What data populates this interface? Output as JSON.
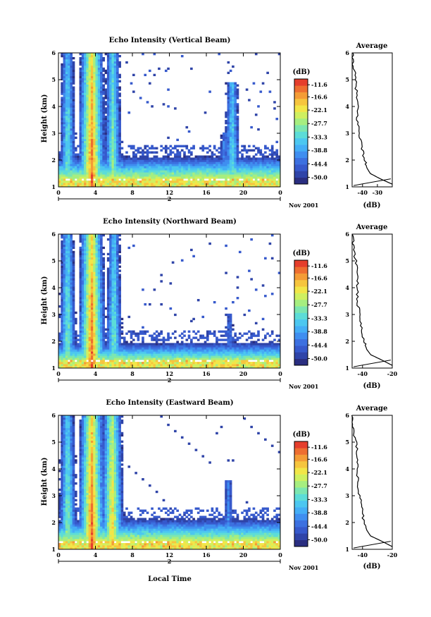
{
  "figure": {
    "xlabel": "Local Time",
    "date_label": "Nov 2001",
    "day_label": "2"
  },
  "colorbar": {
    "title": "(dB)",
    "ticks": [
      "-11.6",
      "-16.6",
      "-22.1",
      "-27.7",
      "-33.3",
      "-38.8",
      "-44.4",
      "-50.0"
    ],
    "colors": [
      "#2a2e80",
      "#2f44a8",
      "#3659cc",
      "#3c70e0",
      "#3f8ef0",
      "#44aef6",
      "#4cc7f0",
      "#5cdcd8",
      "#7ce6b0",
      "#a6ee80",
      "#cff060",
      "#f2e648",
      "#f6c53e",
      "#f49c36",
      "#ee6e30",
      "#e53e2c"
    ],
    "range": [
      -52.8,
      -9.2
    ]
  },
  "panels": [
    {
      "title": "Echo Intensity (Vertical Beam)",
      "ylabel": "Height (km)",
      "avg_title": "Average",
      "avg_xlabel": "(dB)",
      "avg_xticks": [
        "-40",
        "-30"
      ],
      "yticks": [
        "1",
        "2",
        "3",
        "4",
        "5",
        "6"
      ],
      "xticks": [
        "0",
        "4",
        "8",
        "12",
        "16",
        "20",
        "0"
      ]
    },
    {
      "title": "Echo Intensity (Northward Beam)",
      "ylabel": "Height (km)",
      "avg_title": "Average",
      "avg_xlabel": "(dB)",
      "avg_xticks": [
        "-40",
        "-20"
      ],
      "yticks": [
        "1",
        "2",
        "3",
        "4",
        "5",
        "6"
      ],
      "xticks": [
        "0",
        "4",
        "8",
        "12",
        "16",
        "20",
        "0"
      ]
    },
    {
      "title": "Echo Intensity (Eastward Beam)",
      "ylabel": "Height (km)",
      "avg_title": "Average",
      "avg_xlabel": "(dB)",
      "avg_xticks": [
        "-40",
        "-20"
      ],
      "yticks": [
        "1",
        "2",
        "3",
        "4",
        "5",
        "6"
      ],
      "xticks": [
        "0",
        "4",
        "8",
        "12",
        "16",
        "20",
        "0"
      ]
    }
  ],
  "chart_data": [
    {
      "type": "heatmap",
      "title": "Echo Intensity (Vertical Beam)",
      "xlabel": "",
      "ylabel": "Height (km)",
      "xlim": [
        0,
        24
      ],
      "ylim": [
        1,
        6
      ],
      "zlim": [
        -50.0,
        -11.6
      ],
      "colorbar_label": "(dB)",
      "features": [
        {
          "kind": "plume",
          "center_hour": 1.0,
          "from_km": 1.0,
          "to_km": 6.0,
          "peak_db": -28
        },
        {
          "kind": "plume",
          "center_hour": 3.6,
          "from_km": 1.0,
          "to_km": 6.0,
          "peak_db": -12
        },
        {
          "kind": "plume",
          "center_hour": 5.9,
          "from_km": 1.0,
          "to_km": 6.0,
          "peak_db": -26
        },
        {
          "kind": "layer",
          "from_km": 1.0,
          "to_km": 2.2,
          "peak_db": -14
        },
        {
          "kind": "plume",
          "center_hour": 18.0,
          "from_km": 1.0,
          "to_km": 3.0,
          "peak_db": -38
        },
        {
          "kind": "plume",
          "center_hour": 18.8,
          "from_km": 1.0,
          "to_km": 4.9,
          "peak_db": -30
        }
      ]
    },
    {
      "type": "line",
      "title": "Average",
      "xlabel": "(dB)",
      "ylabel": "Height (km)",
      "xlim": [
        -47,
        -20
      ],
      "ylim": [
        1,
        6
      ],
      "x": [
        -47.0,
        -46.0,
        -44.8,
        -44.0,
        -43.4,
        -43.6,
        -42.0,
        -40.5,
        -38.6,
        -37.0,
        -34.8,
        -28.0,
        -20.0
      ],
      "y": [
        6.0,
        5.5,
        5.0,
        4.5,
        4.0,
        3.5,
        3.0,
        2.5,
        2.0,
        1.7,
        1.5,
        1.3,
        1.1
      ]
    },
    {
      "type": "heatmap",
      "title": "Echo Intensity (Northward Beam)",
      "xlabel": "",
      "ylabel": "Height (km)",
      "xlim": [
        0,
        24
      ],
      "ylim": [
        1,
        6
      ],
      "zlim": [
        -50.0,
        -11.6
      ],
      "colorbar_label": "(dB)",
      "features": [
        {
          "kind": "plume",
          "center_hour": 1.0,
          "from_km": 1.0,
          "to_km": 6.0,
          "peak_db": -27
        },
        {
          "kind": "plume",
          "center_hour": 3.6,
          "from_km": 1.0,
          "to_km": 6.0,
          "peak_db": -12
        },
        {
          "kind": "plume",
          "center_hour": 6.0,
          "from_km": 1.0,
          "to_km": 6.0,
          "peak_db": -28
        },
        {
          "kind": "layer",
          "from_km": 1.0,
          "to_km": 2.0,
          "peak_db": -14
        },
        {
          "kind": "plume",
          "center_hour": 18.5,
          "from_km": 1.0,
          "to_km": 3.0,
          "peak_db": -40
        }
      ]
    },
    {
      "type": "line",
      "title": "Average",
      "xlabel": "(dB)",
      "ylabel": "Height (km)",
      "xlim": [
        -47,
        -20
      ],
      "ylim": [
        1,
        6
      ],
      "x": [
        -47.0,
        -46.0,
        -44.6,
        -43.5,
        -43.2,
        -43.6,
        -42.0,
        -40.8,
        -39.0,
        -37.2,
        -34.5,
        -27.0,
        -20.0
      ],
      "y": [
        6.0,
        5.5,
        5.0,
        4.5,
        4.0,
        3.5,
        3.0,
        2.5,
        2.0,
        1.7,
        1.5,
        1.3,
        1.1
      ]
    },
    {
      "type": "heatmap",
      "title": "Echo Intensity (Eastward Beam)",
      "xlabel": "Local Time",
      "ylabel": "Height (km)",
      "xlim": [
        0,
        24
      ],
      "ylim": [
        1,
        6
      ],
      "zlim": [
        -50.0,
        -11.6
      ],
      "colorbar_label": "(dB)",
      "features": [
        {
          "kind": "plume",
          "center_hour": 1.0,
          "from_km": 1.0,
          "to_km": 6.0,
          "peak_db": -26
        },
        {
          "kind": "plume",
          "center_hour": 3.6,
          "from_km": 1.0,
          "to_km": 6.0,
          "peak_db": -12
        },
        {
          "kind": "plume",
          "center_hour": 5.8,
          "from_km": 1.0,
          "to_km": 6.0,
          "peak_db": -18
        },
        {
          "kind": "layer",
          "from_km": 1.0,
          "to_km": 2.2,
          "peak_db": -14
        },
        {
          "kind": "plume",
          "center_hour": 18.4,
          "from_km": 1.0,
          "to_km": 3.6,
          "peak_db": -38
        }
      ]
    },
    {
      "type": "line",
      "title": "Average",
      "xlabel": "(dB)",
      "ylabel": "Height (km)",
      "xlim": [
        -47,
        -20
      ],
      "ylim": [
        1,
        6
      ],
      "x": [
        -47.0,
        -46.2,
        -44.6,
        -43.4,
        -43.0,
        -43.4,
        -42.0,
        -40.6,
        -39.0,
        -37.0,
        -34.6,
        -27.0,
        -20.0
      ],
      "y": [
        6.0,
        5.5,
        5.0,
        4.5,
        4.0,
        3.5,
        3.0,
        2.5,
        2.0,
        1.7,
        1.5,
        1.3,
        1.1
      ]
    }
  ]
}
